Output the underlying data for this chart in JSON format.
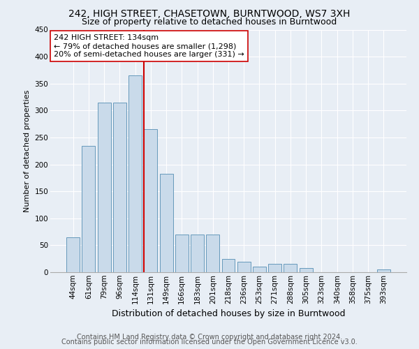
{
  "title": "242, HIGH STREET, CHASETOWN, BURNTWOOD, WS7 3XH",
  "subtitle": "Size of property relative to detached houses in Burntwood",
  "xlabel": "Distribution of detached houses by size in Burntwood",
  "ylabel": "Number of detached properties",
  "categories": [
    "44sqm",
    "61sqm",
    "79sqm",
    "96sqm",
    "114sqm",
    "131sqm",
    "149sqm",
    "166sqm",
    "183sqm",
    "201sqm",
    "218sqm",
    "236sqm",
    "253sqm",
    "271sqm",
    "288sqm",
    "305sqm",
    "323sqm",
    "340sqm",
    "358sqm",
    "375sqm",
    "393sqm"
  ],
  "values": [
    65,
    235,
    315,
    315,
    365,
    265,
    183,
    70,
    70,
    70,
    25,
    20,
    10,
    15,
    15,
    8,
    0,
    0,
    0,
    0,
    5
  ],
  "bar_color": "#c9daea",
  "bar_edge_color": "#6699bb",
  "vline_x": 4.575,
  "vline_color": "#cc0000",
  "annotation_text": "242 HIGH STREET: 134sqm\n← 79% of detached houses are smaller (1,298)\n20% of semi-detached houses are larger (331) →",
  "annotation_box_color": "#ffffff",
  "annotation_box_edge": "#cc0000",
  "ylim": [
    0,
    450
  ],
  "yticks": [
    0,
    50,
    100,
    150,
    200,
    250,
    300,
    350,
    400,
    450
  ],
  "background_color": "#e8eef5",
  "plot_bg_color": "#e8eef5",
  "footer_line1": "Contains HM Land Registry data © Crown copyright and database right 2024.",
  "footer_line2": "Contains public sector information licensed under the Open Government Licence v3.0.",
  "title_fontsize": 10,
  "subtitle_fontsize": 9,
  "xlabel_fontsize": 9,
  "ylabel_fontsize": 8,
  "tick_fontsize": 7.5,
  "footer_fontsize": 7
}
